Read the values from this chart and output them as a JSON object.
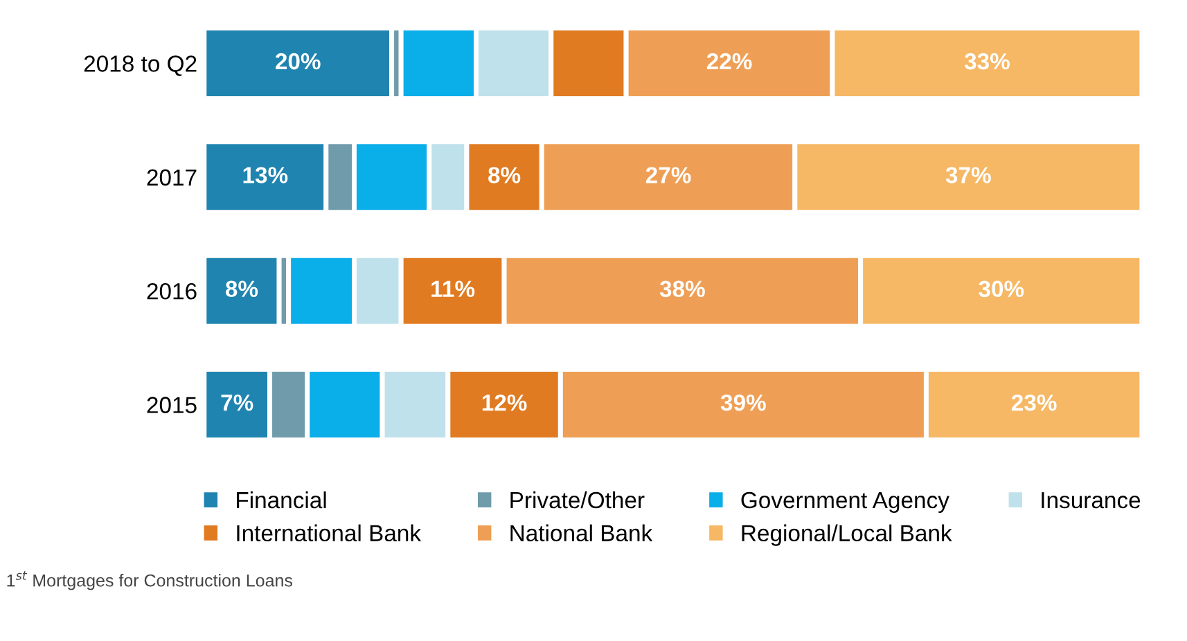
{
  "chart_data": {
    "type": "bar",
    "orientation": "horizontal",
    "stacked": true,
    "categories": [
      "2018 to Q2",
      "2017",
      "2016",
      "2015"
    ],
    "series": [
      {
        "name": "Financial",
        "color": "#1f84b0",
        "values": [
          20,
          13,
          8,
          7
        ],
        "value_labels": [
          "20%",
          "13%",
          "8%",
          "7%"
        ]
      },
      {
        "name": "Private/Other",
        "color": "#6f9bab",
        "values": [
          1,
          3,
          1,
          4
        ],
        "value_labels": [
          null,
          null,
          null,
          null
        ]
      },
      {
        "name": "Government Agency",
        "color": "#0aaee8",
        "values": [
          8,
          8,
          7,
          8
        ],
        "value_labels": [
          null,
          null,
          null,
          null
        ]
      },
      {
        "name": "Insurance",
        "color": "#bfe1ec",
        "values": [
          8,
          4,
          5,
          7
        ],
        "value_labels": [
          null,
          null,
          null,
          null
        ]
      },
      {
        "name": "International Bank",
        "color": "#e07b22",
        "values": [
          8,
          8,
          11,
          12
        ],
        "value_labels": [
          null,
          "8%",
          "11%",
          "12%"
        ]
      },
      {
        "name": "National Bank",
        "color": "#ef9f55",
        "values": [
          22,
          27,
          38,
          39
        ],
        "value_labels": [
          "22%",
          "27%",
          "38%",
          "39%"
        ]
      },
      {
        "name": "Regional/Local Bank",
        "color": "#f6b865",
        "values": [
          33,
          37,
          30,
          23
        ],
        "value_labels": [
          "33%",
          "37%",
          "30%",
          "23%"
        ]
      }
    ],
    "xlim": [
      0,
      100
    ],
    "tick_labels": "y",
    "grid": false,
    "legend": "bottom",
    "annotations": [
      "1$^{st}$ Mortgages for Construction Loans"
    ]
  }
}
